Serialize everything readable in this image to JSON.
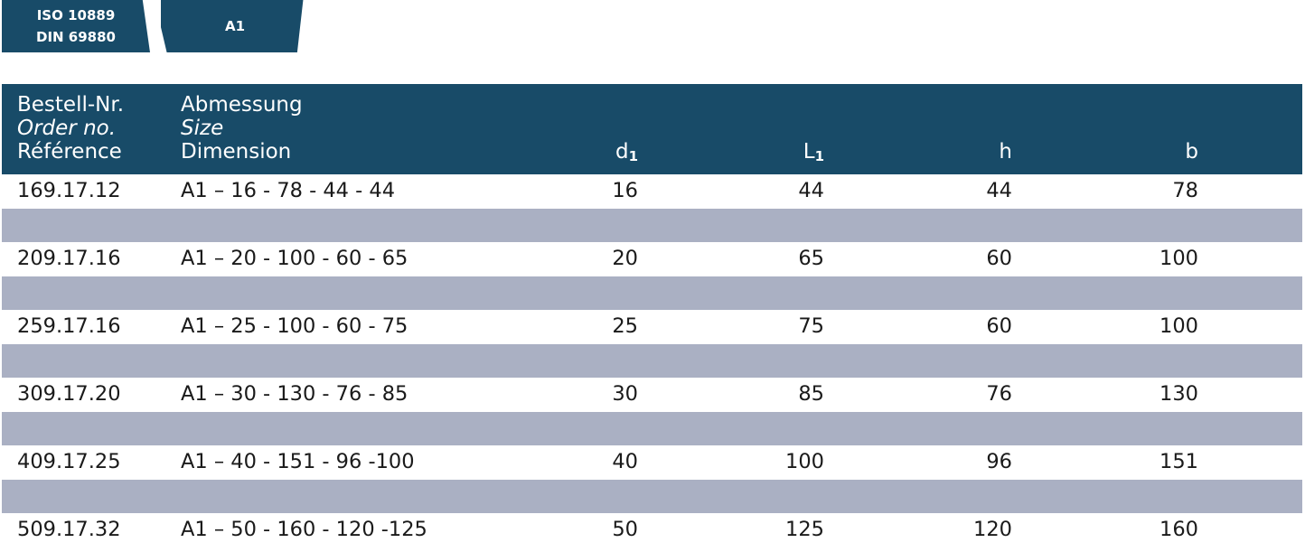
{
  "tags": {
    "standard_line1": "ISO 10889",
    "standard_line2": "DIN 69880",
    "form": "A1"
  },
  "header": {
    "order_de": "Bestell-Nr.",
    "order_en": "Order no.",
    "order_fr": "Référence",
    "size_de": "Abmessung",
    "size_en": "Size",
    "size_fr": "Dimension",
    "d1_base": "d",
    "d1_sub": "1",
    "l1_base": "L",
    "l1_sub": "1",
    "h": "h",
    "b": "b"
  },
  "rows": [
    {
      "order": "169.17.12",
      "size": "A1 – 16 - 78 - 44 - 44",
      "d1": "16",
      "l1": "44",
      "h": "44",
      "b": "78"
    },
    {
      "order": "209.17.16",
      "size": "A1 – 20 - 100 - 60 - 65",
      "d1": "20",
      "l1": "65",
      "h": "60",
      "b": "100"
    },
    {
      "order": "259.17.16",
      "size": "A1 – 25 - 100 - 60 - 75",
      "d1": "25",
      "l1": "75",
      "h": "60",
      "b": "100"
    },
    {
      "order": "309.17.20",
      "size": "A1 – 30 - 130 - 76 - 85",
      "d1": "30",
      "l1": "85",
      "h": "76",
      "b": "130"
    },
    {
      "order": "409.17.25",
      "size": "A1 – 40 - 151 - 96 -100",
      "d1": "40",
      "l1": "100",
      "h": "96",
      "b": "151"
    },
    {
      "order": "509.17.32",
      "size": "A1 – 50 - 160 - 120 -125",
      "d1": "50",
      "l1": "125",
      "h": "120",
      "b": "160"
    }
  ],
  "colors": {
    "header_bg": "#184b68",
    "stripe_bg": "#aab0c3"
  }
}
